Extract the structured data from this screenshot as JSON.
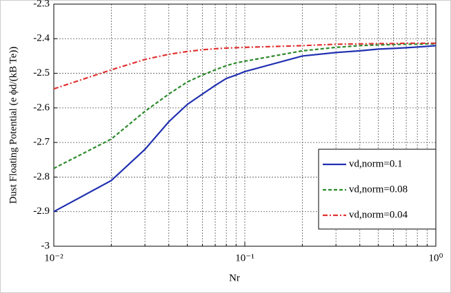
{
  "chart_data": {
    "type": "line",
    "xlabel": "Nr",
    "ylabel": "Dust Floating Potential (e ϕd/(kB Te))",
    "x": [
      0.01,
      0.02,
      0.03,
      0.04,
      0.05,
      0.06,
      0.07,
      0.08,
      0.09,
      0.1,
      0.2,
      0.3,
      0.4,
      0.5,
      0.6,
      0.7,
      0.8,
      0.9,
      1
    ],
    "series": [
      {
        "name": "vd,norm=0.1",
        "color": "#1f2fb0",
        "dash": "solid",
        "values": [
          -2.9,
          -2.81,
          -2.72,
          -2.64,
          -2.59,
          -2.56,
          -2.535,
          -2.515,
          -2.505,
          -2.495,
          -2.45,
          -2.44,
          -2.435,
          -2.43,
          -2.428,
          -2.426,
          -2.424,
          -2.422,
          -2.42
        ]
      },
      {
        "name": "vd,norm=0.08",
        "color": "#2a8a2a",
        "dash": "dashed",
        "values": [
          -2.775,
          -2.69,
          -2.61,
          -2.56,
          -2.525,
          -2.505,
          -2.49,
          -2.478,
          -2.47,
          -2.465,
          -2.435,
          -2.425,
          -2.42,
          -2.418,
          -2.417,
          -2.416,
          -2.416,
          -2.415,
          -2.415
        ]
      },
      {
        "name": "vd,norm=0.04",
        "color": "#e03030",
        "dash": "dashdot",
        "values": [
          -2.545,
          -2.49,
          -2.46,
          -2.445,
          -2.437,
          -2.432,
          -2.429,
          -2.427,
          -2.426,
          -2.425,
          -2.42,
          -2.416,
          -2.415,
          -2.414,
          -2.414,
          -2.413,
          -2.413,
          -2.413,
          -2.413
        ]
      }
    ],
    "xscale": "log",
    "xlim": [
      0.01,
      1
    ],
    "xticks": [
      {
        "value": 0.01,
        "label": "10⁻²"
      },
      {
        "value": 0.1,
        "label": "10⁻¹"
      },
      {
        "value": 1,
        "label": "10⁰"
      }
    ],
    "xminorticks": [
      0.02,
      0.03,
      0.04,
      0.05,
      0.06,
      0.07,
      0.08,
      0.09,
      0.2,
      0.3,
      0.4,
      0.5,
      0.6,
      0.7,
      0.8,
      0.9
    ],
    "ylim": [
      -3,
      -2.3
    ],
    "yticks": [
      -3,
      -2.9,
      -2.8,
      -2.7,
      -2.6,
      -2.5,
      -2.4,
      -2.3
    ],
    "grid": true,
    "legend": "lower right"
  }
}
